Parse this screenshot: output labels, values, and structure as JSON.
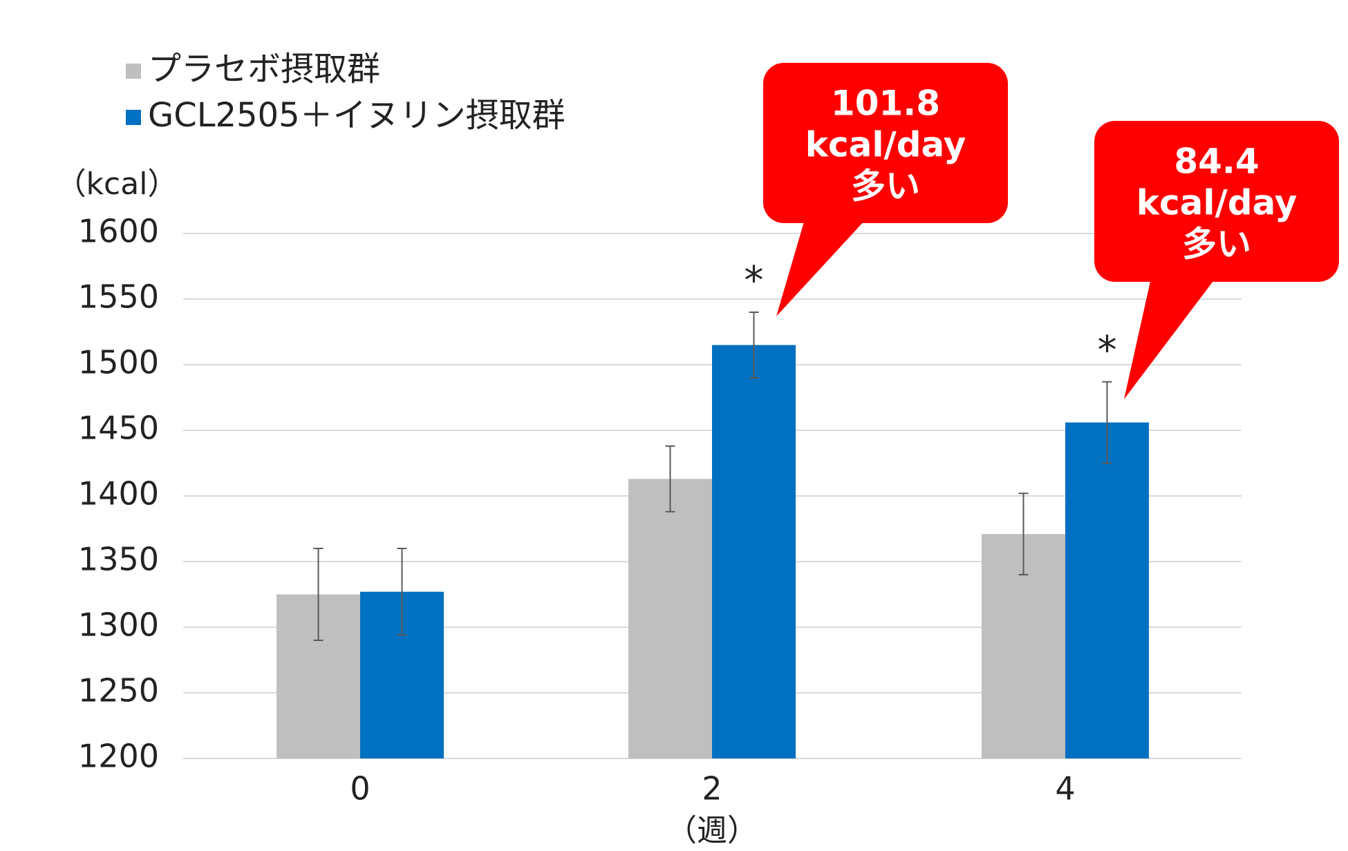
{
  "chart_data": {
    "type": "bar",
    "y_label": "（kcal）",
    "x_label": "（週）",
    "categories": [
      "0",
      "2",
      "4"
    ],
    "series": [
      {
        "name": "プラセボ摂取群",
        "color": "#bfbfbf",
        "values": [
          1325,
          1413,
          1371
        ],
        "errors": [
          35,
          25,
          31
        ]
      },
      {
        "name": "GCL2505＋イヌリン摂取群",
        "color": "#0070c0",
        "values": [
          1327,
          1515,
          1456
        ],
        "errors": [
          33,
          25,
          31
        ]
      }
    ],
    "ylim": [
      1200,
      1600
    ],
    "yticks": [
      1200,
      1250,
      1300,
      1350,
      1400,
      1450,
      1500,
      1550,
      1600
    ],
    "grid": true,
    "significance": [
      null,
      "*",
      "*"
    ],
    "callouts": [
      {
        "lines": [
          "101.8",
          "kcal/day",
          "多い"
        ],
        "color": "#ff0000"
      },
      {
        "lines": [
          "84.4",
          "kcal/day",
          "多い"
        ],
        "color": "#ff0000"
      }
    ]
  }
}
